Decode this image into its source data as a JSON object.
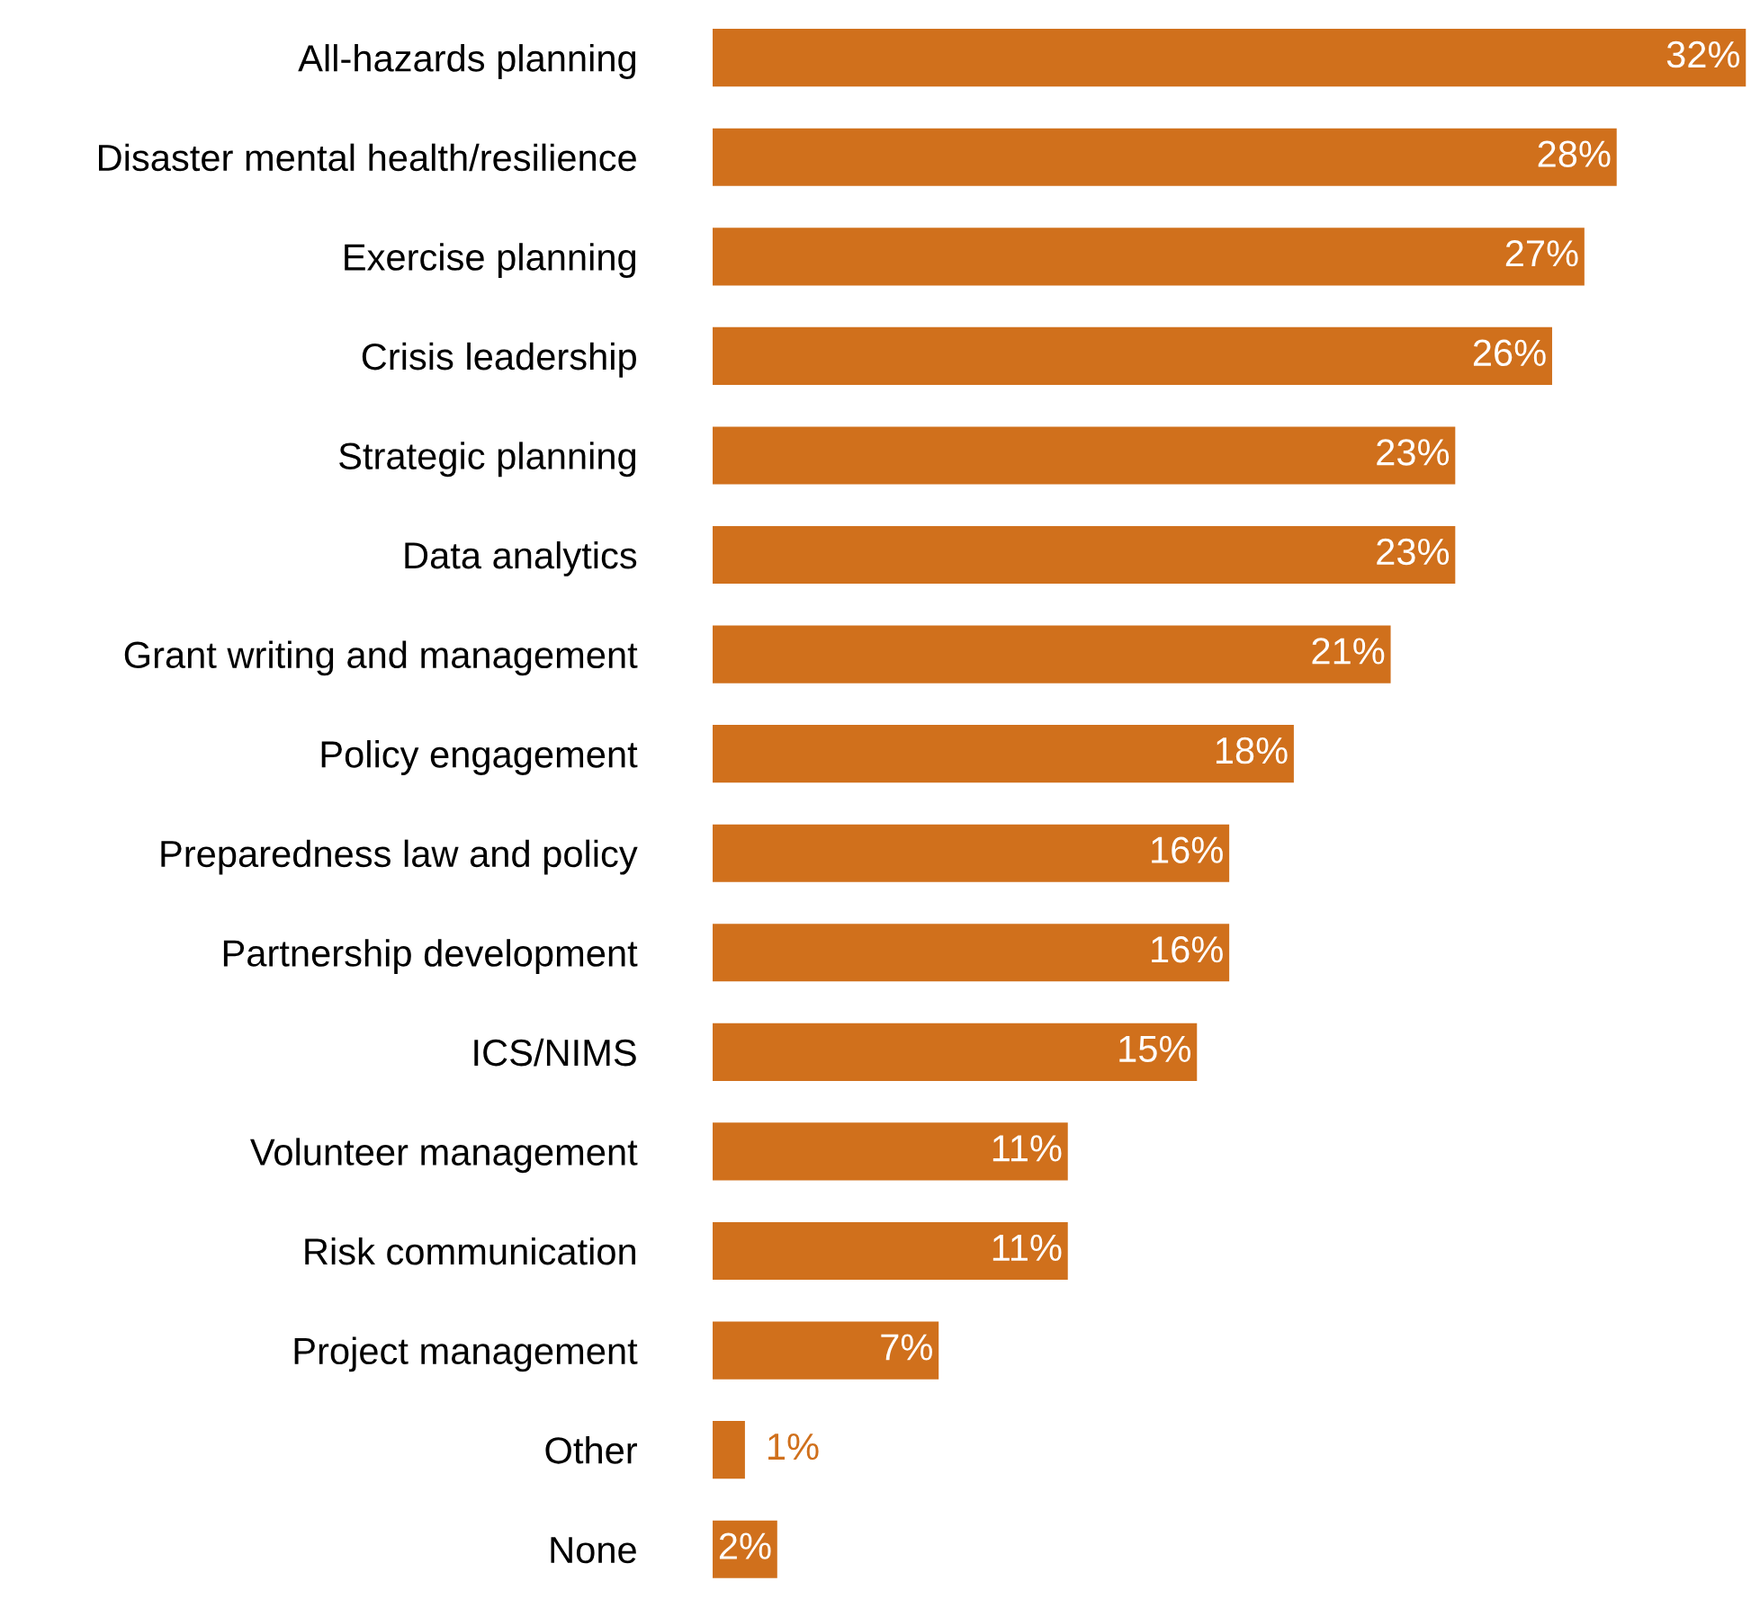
{
  "chart_data": {
    "type": "bar",
    "orientation": "horizontal",
    "value_labels": [
      "32%",
      "28%",
      "27%",
      "26%",
      "23%",
      "23%",
      "21%",
      "18%",
      "16%",
      "16%",
      "15%",
      "11%",
      "11%",
      "7%",
      "1%",
      "2%"
    ],
    "grid": false,
    "legend": false,
    "color": "#d0701c",
    "categories": [
      "All-hazards planning",
      "Disaster mental health/resilience",
      "Exercise planning",
      "Crisis leadership",
      "Strategic planning",
      "Data analytics",
      "Grant writing and management",
      "Policy engagement",
      "Preparedness law and policy",
      "Partnership development",
      "ICS/NIMS",
      "Volunteer management",
      "Risk communication",
      "Project management",
      "Other",
      "None"
    ],
    "values": [
      32,
      28,
      27,
      26,
      23,
      23,
      21,
      18,
      16,
      16,
      15,
      11,
      11,
      7,
      1,
      2
    ]
  }
}
